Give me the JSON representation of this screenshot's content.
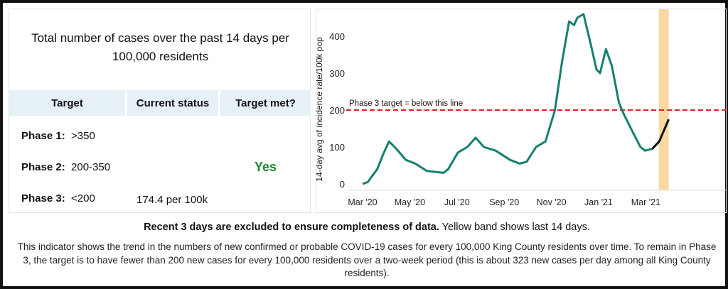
{
  "panel": {
    "title": "Total number of cases over the past 14 days per 100,000 residents",
    "headers": [
      "Target",
      "Current status",
      "Target met?"
    ],
    "rows": [
      {
        "phase": "Phase 1:",
        "range": ">350",
        "status": "",
        "met": ""
      },
      {
        "phase": "Phase 2:",
        "range": "200-350",
        "status": "",
        "met": "Yes"
      },
      {
        "phase": "Phase 3:",
        "range": "<200",
        "status": "174.4 per 100k",
        "met": ""
      }
    ]
  },
  "footer": {
    "bold": "Recent 3 days are excluded to ensure completeness of data.",
    "plain": " Yellow band shows last 14 days.",
    "description": "This indicator shows the trend in the numbers of new confirmed or probable COVID-19 cases for every 100,000 King County residents over time. To remain in Phase 3, the target is to have fewer than 200 new cases for every 100,000 residents over a two-week period (this is about 323 new cases per day among all King County residents)."
  },
  "chart_data": {
    "type": "line",
    "title": "",
    "xlabel": "",
    "ylabel": "14-day avg of incidence rate/100k pop",
    "x_unit": "months since Mar 1 2020",
    "xlim": [
      -0.4,
      13.5
    ],
    "ylim": [
      -15,
      470
    ],
    "yticks": [
      0,
      100,
      200,
      300,
      400
    ],
    "xticks": [
      {
        "x": 0,
        "label": "Mar '20"
      },
      {
        "x": 2,
        "label": "May '20"
      },
      {
        "x": 4,
        "label": "Jul '20"
      },
      {
        "x": 6,
        "label": "Sep '20"
      },
      {
        "x": 8,
        "label": "Nov '20"
      },
      {
        "x": 10,
        "label": "Jan '21"
      },
      {
        "x": 12,
        "label": "Mar '21"
      }
    ],
    "threshold": {
      "value": 200,
      "label": "Phase 3 target =  below this line",
      "color": "#e0202a"
    },
    "highlight_band": {
      "from": 12.55,
      "to": 12.97,
      "color": "#f9d9a0",
      "label": "last 14 days"
    },
    "series": [
      {
        "name": "14-day avg incidence",
        "color": "#14806f",
        "recent_color": "#111111",
        "x": [
          0,
          0.22,
          0.62,
          0.87,
          1.12,
          1.43,
          1.83,
          2.23,
          2.73,
          3.43,
          3.63,
          4.04,
          4.44,
          4.79,
          5.14,
          5.64,
          6.25,
          6.65,
          6.95,
          7.35,
          7.75,
          8.15,
          8.45,
          8.75,
          8.96,
          9.1,
          9.36,
          9.66,
          9.91,
          10.06,
          10.31,
          10.56,
          10.86,
          11.06,
          11.37,
          11.77,
          11.97,
          12.27,
          12.57,
          12.97
        ],
        "y": [
          0,
          5,
          40,
          80,
          115,
          95,
          65,
          55,
          35,
          30,
          40,
          85,
          100,
          125,
          100,
          90,
          65,
          55,
          60,
          100,
          115,
          200,
          330,
          440,
          430,
          450,
          460,
          380,
          310,
          300,
          365,
          320,
          220,
          190,
          150,
          100,
          90,
          95,
          115,
          175
        ]
      }
    ]
  }
}
